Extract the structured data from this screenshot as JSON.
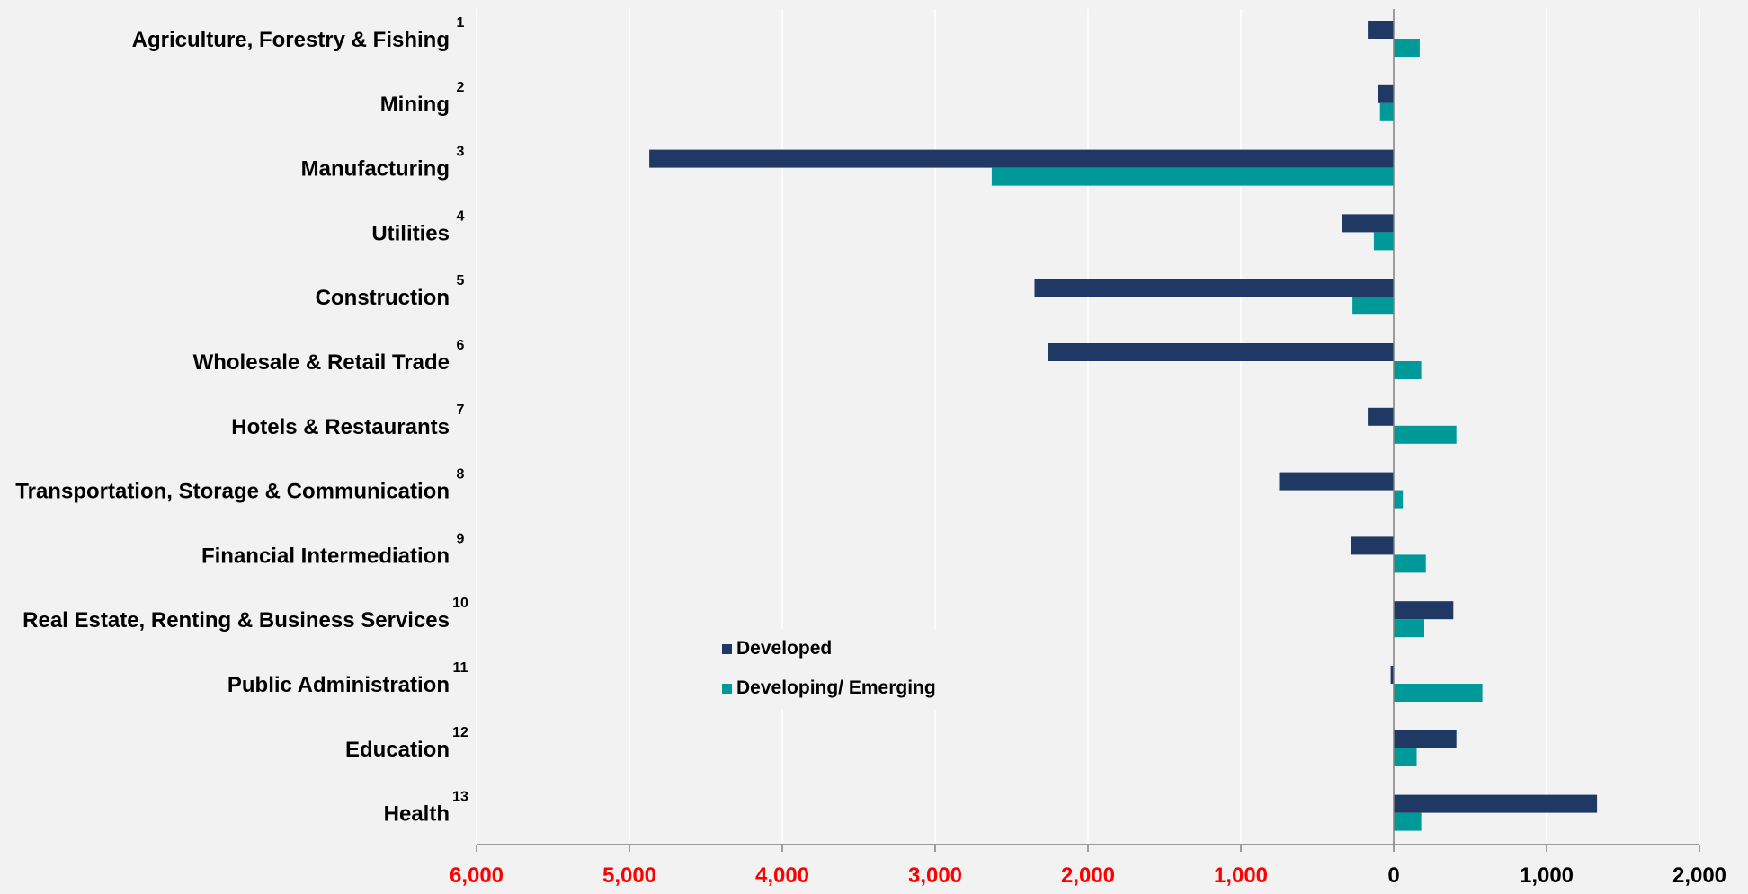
{
  "chart_data": {
    "type": "bar",
    "orientation": "horizontal",
    "categories": [
      {
        "num": "1",
        "label": "Agriculture, Forestry & Fishing"
      },
      {
        "num": "2",
        "label": "Mining"
      },
      {
        "num": "3",
        "label": "Manufacturing"
      },
      {
        "num": "4",
        "label": "Utilities"
      },
      {
        "num": "5",
        "label": "Construction"
      },
      {
        "num": "6",
        "label": "Wholesale & Retail Trade"
      },
      {
        "num": "7",
        "label": "Hotels & Restaurants"
      },
      {
        "num": "8",
        "label": "Transportation, Storage & Communication"
      },
      {
        "num": "9",
        "label": "Financial Intermediation"
      },
      {
        "num": "10",
        "label": "Real Estate, Renting & Business Services"
      },
      {
        "num": "11",
        "label": "Public Administration"
      },
      {
        "num": "12",
        "label": "Education"
      },
      {
        "num": "13",
        "label": "Health"
      }
    ],
    "series": [
      {
        "name": "Developed",
        "color": "#1f3864",
        "values": [
          -170,
          -100,
          -4870,
          -340,
          -2350,
          -2260,
          -170,
          -750,
          -280,
          390,
          -20,
          410,
          1330
        ]
      },
      {
        "name": "Developing/ Emerging",
        "color": "#009999",
        "values": [
          170,
          -90,
          -2630,
          -130,
          -270,
          180,
          410,
          60,
          210,
          200,
          580,
          150,
          180
        ]
      }
    ],
    "xlim": [
      -6000,
      2000
    ],
    "x_ticks": [
      {
        "value": -6000,
        "label": "6,000",
        "color": "#ff0000"
      },
      {
        "value": -5000,
        "label": "5,000",
        "color": "#ff0000"
      },
      {
        "value": -4000,
        "label": "4,000",
        "color": "#ff0000"
      },
      {
        "value": -3000,
        "label": "3,000",
        "color": "#ff0000"
      },
      {
        "value": -2000,
        "label": "2,000",
        "color": "#ff0000"
      },
      {
        "value": -1000,
        "label": "1,000",
        "color": "#ff0000"
      },
      {
        "value": 0,
        "label": "0",
        "color": "#000000"
      },
      {
        "value": 1000,
        "label": "1,000",
        "color": "#000000"
      },
      {
        "value": 2000,
        "label": "2,000",
        "color": "#000000"
      }
    ],
    "grid": true,
    "legend_position": "lower-center"
  }
}
